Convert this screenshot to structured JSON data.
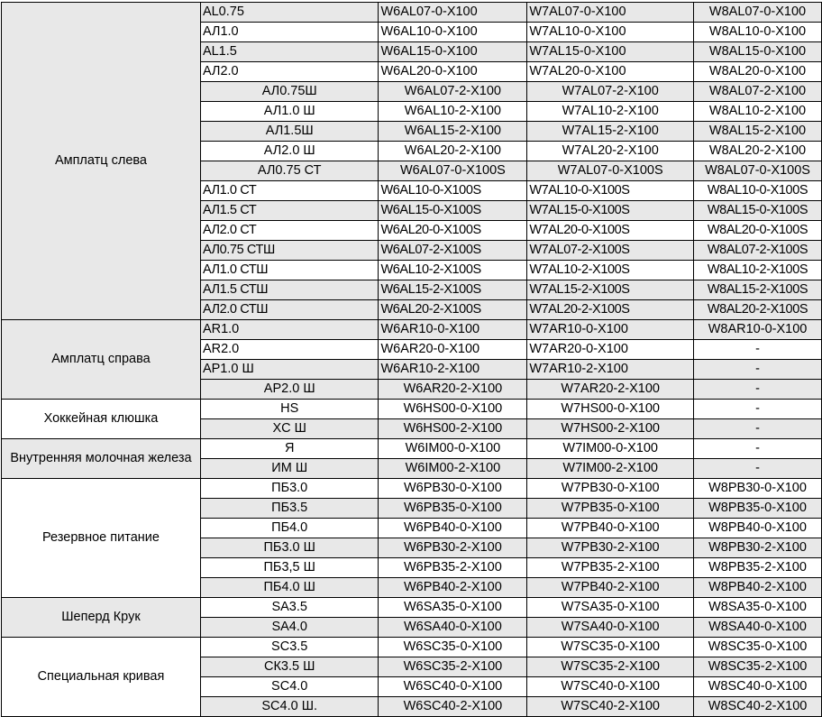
{
  "colors": {
    "shade": "#e8e8e8",
    "border": "#000000"
  },
  "groups": [
    {
      "name": "Амплатц слева",
      "shaded": true,
      "rows": [
        {
          "cells": [
            "AL0.75",
            "W6AL07-0-X100",
            "W7AL07-0-X100",
            "W8AL07-0-X100"
          ],
          "shaded": true,
          "align": "left"
        },
        {
          "cells": [
            "АЛ1.0",
            "W6AL10-0-X100",
            "W7AL10-0-X100",
            "W8AL10-0-X100"
          ],
          "shaded": false,
          "align": "left"
        },
        {
          "cells": [
            "AL1.5",
            "W6AL15-0-X100",
            "W7AL15-0-X100",
            "W8AL15-0-X100"
          ],
          "shaded": true,
          "align": "left"
        },
        {
          "cells": [
            "АЛ2.0",
            "W6AL20-0-X100",
            "W7AL20-0-X100",
            "W8AL20-0-X100"
          ],
          "shaded": false,
          "align": "left"
        },
        {
          "cells": [
            "АЛ0.75Ш",
            "W6AL07-2-X100",
            "W7AL07-2-X100",
            "W8AL07-2-X100"
          ],
          "shaded": true,
          "align": "center"
        },
        {
          "cells": [
            "АЛ1.0 Ш",
            "W6AL10-2-X100",
            "W7AL10-2-X100",
            "W8AL10-2-X100"
          ],
          "shaded": false,
          "align": "center"
        },
        {
          "cells": [
            "АЛ1.5Ш",
            "W6AL15-2-X100",
            "W7AL15-2-X100",
            "W8AL15-2-X100"
          ],
          "shaded": true,
          "align": "center"
        },
        {
          "cells": [
            "АЛ2.0 Ш",
            "W6AL20-2-X100",
            "W7AL20-2-X100",
            "W8AL20-2-X100"
          ],
          "shaded": false,
          "align": "center"
        },
        {
          "cells": [
            "АЛ0.75 СТ",
            "W6AL07-0-X100S",
            "W7AL07-0-X100S",
            "W8AL07-0-X100S"
          ],
          "shaded": true,
          "align": "center"
        },
        {
          "cells": [
            "АЛ1.0 СТ",
            "W6AL10-0-X100S",
            "W7AL10-0-X100S",
            "W8AL10-0-X100S"
          ],
          "shaded": false,
          "align": "left"
        },
        {
          "cells": [
            "АЛ1.5 СТ",
            "W6AL15-0-X100S",
            "W7AL15-0-X100S",
            "W8AL15-0-X100S"
          ],
          "shaded": true,
          "align": "left"
        },
        {
          "cells": [
            "АЛ2.0 СТ",
            "W6AL20-0-X100S",
            "W7AL20-0-X100S",
            "W8AL20-0-X100S"
          ],
          "shaded": false,
          "align": "left"
        },
        {
          "cells": [
            "АЛ0.75 СТШ",
            "W6AL07-2-X100S",
            "W7AL07-2-X100S",
            "W8AL07-2-X100S"
          ],
          "shaded": true,
          "align": "left"
        },
        {
          "cells": [
            "АЛ1.0 СТШ",
            "W6AL10-2-X100S",
            "W7AL10-2-X100S",
            "W8AL10-2-X100S"
          ],
          "shaded": false,
          "align": "left"
        },
        {
          "cells": [
            "АЛ1.5 СТШ",
            "W6AL15-2-X100S",
            "W7AL15-2-X100S",
            "W8AL15-2-X100S"
          ],
          "shaded": true,
          "align": "left"
        },
        {
          "cells": [
            "АЛ2.0 СТШ",
            "W6AL20-2-X100S",
            "W7AL20-2-X100S",
            "W8AL20-2-X100S"
          ],
          "shaded": true,
          "align": "left"
        }
      ]
    },
    {
      "name": "Амплатц справа",
      "shaded": true,
      "rows": [
        {
          "cells": [
            "AR1.0",
            "W6AR10-0-X100",
            "W7AR10-0-X100",
            "W8AR10-0-X100"
          ],
          "shaded": true,
          "align": "left"
        },
        {
          "cells": [
            "AR2.0",
            "W6AR20-0-X100",
            "W7AR20-0-X100",
            "-"
          ],
          "shaded": false,
          "align": "left"
        },
        {
          "cells": [
            "AP1.0 Ш",
            "W6AR10-2-X100",
            "W7AR10-2-X100",
            "-"
          ],
          "shaded": true,
          "align": "left"
        },
        {
          "cells": [
            "AP2.0 Ш",
            "W6AR20-2-X100",
            "W7AR20-2-X100",
            "-"
          ],
          "shaded": true,
          "align": "center"
        }
      ]
    },
    {
      "name": "Хоккейная клюшка",
      "shaded": false,
      "rows": [
        {
          "cells": [
            "HS",
            "W6HS00-0-X100",
            "W7HS00-0-X100",
            "-"
          ],
          "shaded": false,
          "align": "center"
        },
        {
          "cells": [
            "XC Ш",
            "W6HS00-2-X100",
            "W7HS00-2-X100",
            "-"
          ],
          "shaded": true,
          "align": "center"
        }
      ]
    },
    {
      "name": "Внутренняя молочная железа",
      "shaded": true,
      "rows": [
        {
          "cells": [
            "Я",
            "W6IM00-0-X100",
            "W7IM00-0-X100",
            "-"
          ],
          "shaded": false,
          "align": "center"
        },
        {
          "cells": [
            "ИМ Ш",
            "W6IM00-2-X100",
            "W7IM00-2-X100",
            "-"
          ],
          "shaded": true,
          "align": "center"
        }
      ]
    },
    {
      "name": "Резервное питание",
      "shaded": false,
      "rows": [
        {
          "cells": [
            "ПБ3.0",
            "W6PB30-0-X100",
            "W7PB30-0-X100",
            "W8PB30-0-X100"
          ],
          "shaded": false,
          "align": "center"
        },
        {
          "cells": [
            "ПБ3.5",
            "W6PB35-0-X100",
            "W7PB35-0-X100",
            "W8PB35-0-X100"
          ],
          "shaded": true,
          "align": "center"
        },
        {
          "cells": [
            "ПБ4.0",
            "W6PB40-0-X100",
            "W7PB40-0-X100",
            "W8PB40-0-X100"
          ],
          "shaded": false,
          "align": "center"
        },
        {
          "cells": [
            "ПБ3.0 Ш",
            "W6PB30-2-X100",
            "W7PB30-2-X100",
            "W8PB30-2-X100"
          ],
          "shaded": true,
          "align": "center"
        },
        {
          "cells": [
            "ПБ3,5 Ш",
            "W6PB35-2-X100",
            "W7PB35-2-X100",
            "W8PB35-2-X100"
          ],
          "shaded": false,
          "align": "center"
        },
        {
          "cells": [
            "ПБ4.0 Ш",
            "W6PB40-2-X100",
            "W7PB40-2-X100",
            "W8PB40-2-X100"
          ],
          "shaded": true,
          "align": "center"
        }
      ]
    },
    {
      "name": "Шеперд Крук",
      "shaded": true,
      "rows": [
        {
          "cells": [
            "SA3.5",
            "W6SA35-0-X100",
            "W7SA35-0-X100",
            "W8SA35-0-X100"
          ],
          "shaded": false,
          "align": "center"
        },
        {
          "cells": [
            "SA4.0",
            "W6SA40-0-X100",
            "W7SA40-0-X100",
            "W8SA40-0-X100"
          ],
          "shaded": true,
          "align": "center"
        }
      ]
    },
    {
      "name": "Специальная кривая",
      "shaded": false,
      "rows": [
        {
          "cells": [
            "SC3.5",
            "W6SC35-0-X100",
            "W7SC35-0-X100",
            "W8SC35-0-X100"
          ],
          "shaded": false,
          "align": "center"
        },
        {
          "cells": [
            "СК3.5 Ш",
            "W6SC35-2-X100",
            "W7SC35-2-X100",
            "W8SC35-2-X100"
          ],
          "shaded": true,
          "align": "center"
        },
        {
          "cells": [
            "SC4.0",
            "W6SC40-0-X100",
            "W7SC40-0-X100",
            "W8SC40-0-X100"
          ],
          "shaded": false,
          "align": "center"
        },
        {
          "cells": [
            "SC4.0 Ш.",
            "W6SC40-2-X100",
            "W7SC40-2-X100",
            "W8SC40-2-X100"
          ],
          "shaded": true,
          "align": "center"
        }
      ]
    }
  ]
}
